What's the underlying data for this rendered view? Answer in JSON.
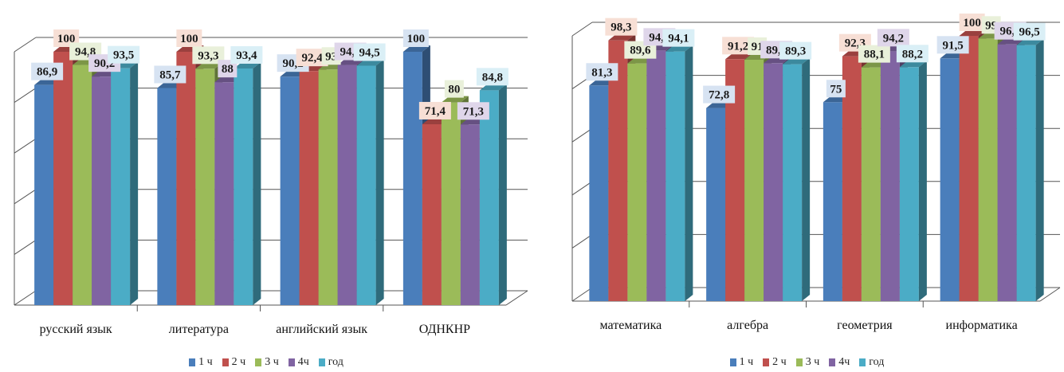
{
  "colors": {
    "series": [
      "#4a7ebb",
      "#c0504d",
      "#9bbb59",
      "#8064a2",
      "#4bacc6"
    ],
    "label_bg": [
      "#d7e3f2",
      "#f7dfd5",
      "#e9f0da",
      "#dfd6ea",
      "#daeff6"
    ],
    "grid": "#555555"
  },
  "chart_data": [
    {
      "type": "bar",
      "categories": [
        "русский язык",
        "литература",
        "английский язык",
        "ОДНКНР"
      ],
      "series": [
        {
          "name": "1 ч",
          "values": [
            86.9,
            85.7,
            90.2,
            100
          ]
        },
        {
          "name": "2 ч",
          "values": [
            100,
            100,
            92.4,
            71.4
          ]
        },
        {
          "name": "3 ч",
          "values": [
            94.8,
            93.3,
            93,
            80
          ]
        },
        {
          "name": "4ч",
          "values": [
            90.2,
            88,
            94.8,
            71.3
          ]
        },
        {
          "name": "год",
          "values": [
            93.5,
            93.4,
            94.5,
            84.8
          ]
        }
      ],
      "ylim": [
        0,
        100
      ],
      "grid": true,
      "legend_position": "bottom"
    },
    {
      "type": "bar",
      "categories": [
        "математика",
        "алгебра",
        "геометрия",
        "информатика"
      ],
      "series": [
        {
          "name": "1 ч",
          "values": [
            81.3,
            72.8,
            75,
            91.5
          ]
        },
        {
          "name": "2 ч",
          "values": [
            98.3,
            91.2,
            92.3,
            100
          ]
        },
        {
          "name": "3 ч",
          "values": [
            89.6,
            91,
            88.1,
            99
          ]
        },
        {
          "name": "4ч",
          "values": [
            94.5,
            89.7,
            94.2,
            96.8
          ]
        },
        {
          "name": "год",
          "values": [
            94.1,
            89.3,
            88.2,
            96.5
          ]
        }
      ],
      "ylim": [
        0,
        100
      ],
      "grid": true,
      "legend_position": "bottom"
    }
  ]
}
